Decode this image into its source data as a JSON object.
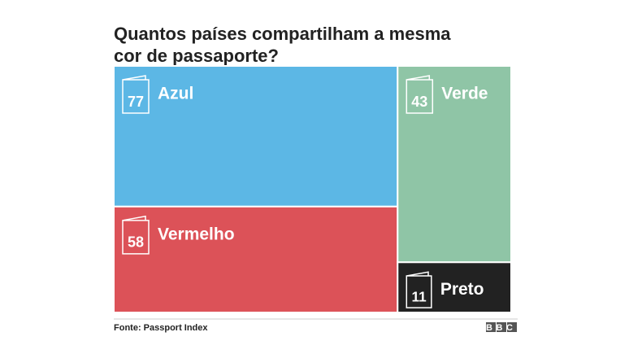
{
  "chart_data": {
    "type": "treemap",
    "title": [
      "Quantos países compartilham a mesma",
      "cor de passaporte?"
    ],
    "categories": [
      "Azul",
      "Vermelho",
      "Verde",
      "Preto"
    ],
    "values": [
      77,
      58,
      43,
      11
    ],
    "colors": [
      "#5cb7e5",
      "#dc5258",
      "#8fc5a6",
      "#222222"
    ],
    "source": "Fonte: Passport Index",
    "logo": "BBC"
  }
}
